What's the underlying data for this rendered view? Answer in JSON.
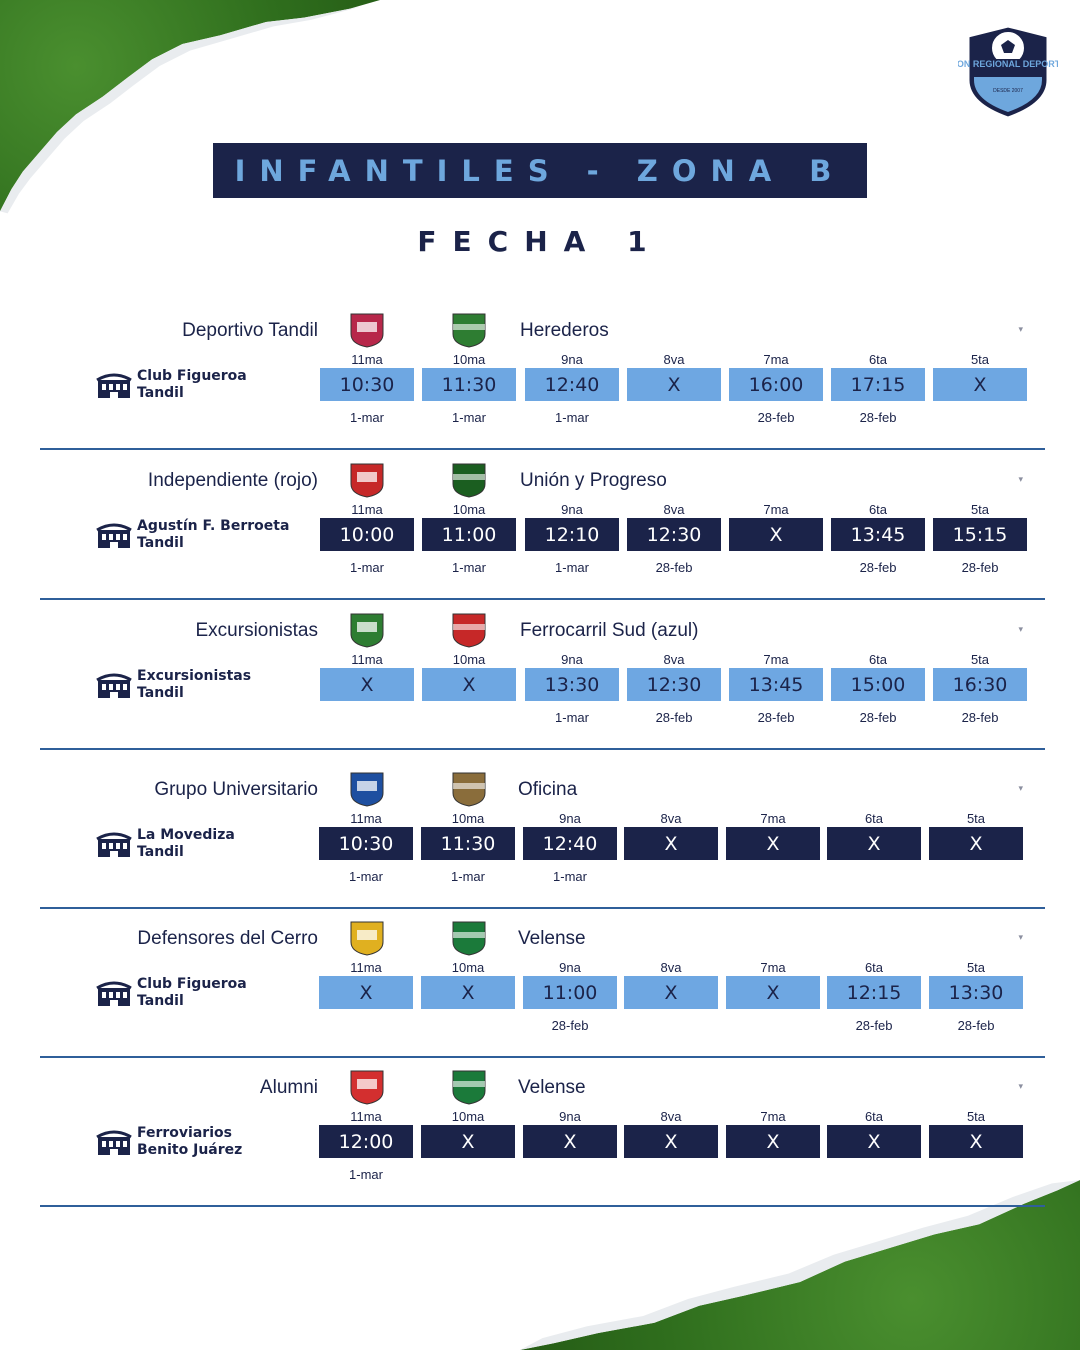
{
  "header": {
    "banner_title": "INFANTILES - ZONA B",
    "round_title": "FECHA 1",
    "logo": {
      "name": "UNION REGIONAL DEPORTIVA",
      "since": "DESDE 2007"
    }
  },
  "categories": [
    "11ma",
    "10ma",
    "9na",
    "8va",
    "7ma",
    "6ta",
    "5ta"
  ],
  "colors": {
    "navy": "#1b2349",
    "light_blue": "#6ea7e2",
    "divider": "#2f5f9a"
  },
  "matches": [
    {
      "home": "Deportivo Tandil",
      "away": "Herederos",
      "venue_line1": "Club Figueroa",
      "venue_line2": "Tandil",
      "theme": "light",
      "times": [
        "10:30",
        "11:30",
        "12:40",
        "X",
        "16:00",
        "17:15",
        "X"
      ],
      "dates": [
        "1-mar",
        "1-mar",
        "1-mar",
        "",
        "28-feb",
        "28-feb",
        ""
      ]
    },
    {
      "home": "Independiente (rojo)",
      "away": "Unión y Progreso",
      "venue_line1": "Agustín F. Berroeta",
      "venue_line2": "Tandil",
      "theme": "dark",
      "times": [
        "10:00",
        "11:00",
        "12:10",
        "12:30",
        "X",
        "13:45",
        "15:15"
      ],
      "dates": [
        "1-mar",
        "1-mar",
        "1-mar",
        "28-feb",
        "",
        "28-feb",
        "28-feb"
      ]
    },
    {
      "home": "Excursionistas",
      "away": "Ferrocarril Sud (azul)",
      "venue_line1": "Excursionistas",
      "venue_line2": "Tandil",
      "theme": "light",
      "times": [
        "X",
        "X",
        "13:30",
        "12:30",
        "13:45",
        "15:00",
        "16:30"
      ],
      "dates": [
        "",
        "",
        "1-mar",
        "28-feb",
        "28-feb",
        "28-feb",
        "28-feb"
      ]
    },
    {
      "home": "Grupo Universitario",
      "away": "Oficina",
      "venue_line1": "La Movediza",
      "venue_line2": "Tandil",
      "theme": "dark",
      "times": [
        "10:30",
        "11:30",
        "12:40",
        "X",
        "X",
        "X",
        "X"
      ],
      "dates": [
        "1-mar",
        "1-mar",
        "1-mar",
        "",
        "",
        "",
        ""
      ]
    },
    {
      "home": "Defensores del Cerro",
      "away": "Velense",
      "venue_line1": "Club Figueroa",
      "venue_line2": "Tandil",
      "theme": "light",
      "times": [
        "X",
        "X",
        "11:00",
        "X",
        "X",
        "12:15",
        "13:30"
      ],
      "dates": [
        "",
        "",
        "28-feb",
        "",
        "",
        "28-feb",
        "28-feb"
      ]
    },
    {
      "home": "Alumni",
      "away": "Velense",
      "venue_line1": "Ferroviarios",
      "venue_line2": "Benito Juárez",
      "theme": "dark",
      "times": [
        "12:00",
        "X",
        "X",
        "X",
        "X",
        "X",
        "X"
      ],
      "dates": [
        "1-mar",
        "",
        "",
        "",
        "",
        "",
        ""
      ]
    }
  ]
}
